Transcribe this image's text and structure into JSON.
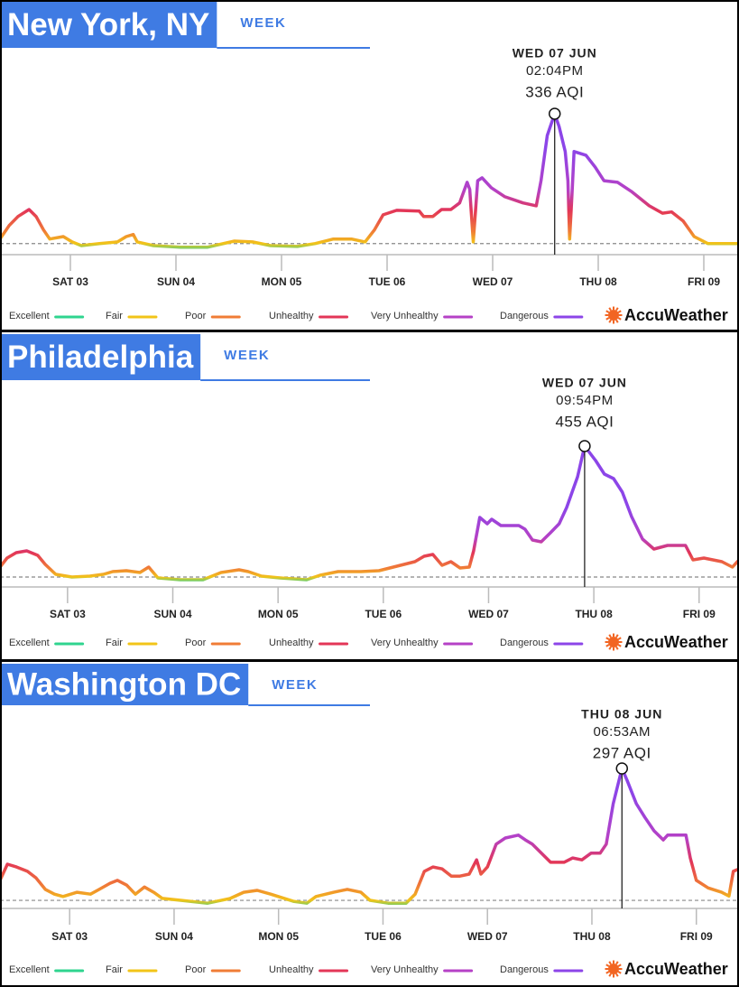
{
  "brand": "AccuWeather",
  "legend": [
    {
      "name": "Excellent",
      "color": "#2fd48f",
      "min": 0
    },
    {
      "name": "Fair",
      "color": "#f2c418",
      "min": 20
    },
    {
      "name": "Poor",
      "color": "#f07c36",
      "min": 50
    },
    {
      "name": "Unhealthy",
      "color": "#e33657",
      "min": 100
    },
    {
      "name": "Very Unhealthy",
      "color": "#b541c6",
      "min": 150
    },
    {
      "name": "Dangerous",
      "color": "#8c45e8",
      "min": 250
    }
  ],
  "chart_data": [
    {
      "type": "line",
      "title": "New York, NY",
      "tab": "WEEK",
      "annotation": {
        "date": "WED 07 JUN",
        "time": "02:04PM",
        "x": 110.1,
        "value": 336,
        "label": "336 AQI"
      },
      "reference_line": 20,
      "xlim": [
        -16,
        152
      ],
      "ylim": [
        -7,
        525
      ],
      "xticks": [
        {
          "value": 0,
          "label": "SAT 03"
        },
        {
          "value": 24,
          "label": "SUN 04"
        },
        {
          "value": 48,
          "label": "MON 05"
        },
        {
          "value": 72,
          "label": "TUE 06"
        },
        {
          "value": 96,
          "label": "WED 07"
        },
        {
          "value": 120,
          "label": "THU 08"
        },
        {
          "value": 144,
          "label": "FRI 09"
        }
      ],
      "x": [
        -16,
        -13.9,
        -11.9,
        -9.4,
        -7.8,
        -6.1,
        -4.7,
        -1.6,
        0.4,
        2.5,
        6.6,
        10.7,
        12.7,
        14.3,
        15.2,
        18.9,
        25,
        31.1,
        37.3,
        41.4,
        45.5,
        51.6,
        55.7,
        59.8,
        63.9,
        67,
        69.1,
        71.1,
        74.2,
        79.3,
        80.3,
        82.4,
        84.4,
        86.5,
        88.5,
        90.2,
        90.8,
        91.6,
        92.6,
        93.6,
        95.7,
        98.8,
        102.9,
        105.9,
        107,
        108.4,
        110.1,
        111.1,
        112.5,
        113.1,
        113.5,
        114.1,
        114.5,
        117.2,
        119.3,
        121.3,
        124.4,
        127.5,
        131.6,
        134.6,
        136.7,
        139.3,
        141.8,
        144.9,
        148,
        151.8
      ],
      "values": [
        31,
        64,
        86,
        103,
        86,
        53,
        31,
        37,
        24,
        15,
        20,
        24,
        37,
        42,
        24,
        15,
        11,
        11,
        26,
        24,
        15,
        13,
        20,
        31,
        31,
        24,
        53,
        90,
        101,
        99,
        86,
        86,
        103,
        103,
        119,
        169,
        152,
        24,
        173,
        180,
        156,
        134,
        119,
        112,
        173,
        283,
        336,
        305,
        244,
        173,
        31,
        152,
        244,
        235,
        206,
        173,
        169,
        147,
        112,
        94,
        97,
        75,
        37,
        20,
        20,
        20
      ]
    },
    {
      "type": "line",
      "title": "Philadelphia",
      "tab": "WEEK",
      "annotation": {
        "date": "WED 07 JUN",
        "time": "09:54PM",
        "x": 117.9,
        "value": 455,
        "label": "455 AQI"
      },
      "reference_line": 20,
      "xlim": [
        -15.4,
        153.1
      ],
      "ylim": [
        -13,
        716
      ],
      "xticks": [
        {
          "value": 0,
          "label": "SAT 03"
        },
        {
          "value": 24,
          "label": "SUN 04"
        },
        {
          "value": 48,
          "label": "MON 05"
        },
        {
          "value": 72,
          "label": "TUE 06"
        },
        {
          "value": 96,
          "label": "WED 07"
        },
        {
          "value": 120,
          "label": "THU 08"
        },
        {
          "value": 144,
          "label": "FRI 09"
        }
      ],
      "x": [
        -15.4,
        -13.8,
        -11.7,
        -9.3,
        -6.8,
        -5.1,
        -2.7,
        1,
        5.1,
        8.2,
        10.3,
        13.4,
        16.5,
        18.5,
        20.6,
        25.7,
        30.9,
        35,
        39.1,
        41.2,
        44.2,
        48.4,
        54.5,
        57.6,
        61.7,
        66.9,
        71,
        75.1,
        79.2,
        81.3,
        83.3,
        85.4,
        87.4,
        89.5,
        91.6,
        92.6,
        94,
        95.7,
        96.7,
        98.8,
        102.9,
        104.3,
        106,
        108,
        110.1,
        112.1,
        113.8,
        116.3,
        117.9,
        120.4,
        122.4,
        124.5,
        126.5,
        128.6,
        131.1,
        133.7,
        136.8,
        140.9,
        142.6,
        145.1,
        149.2,
        151.6,
        153.1
      ],
      "values": [
        53,
        83,
        101,
        107,
        92,
        62,
        29,
        20,
        23,
        29,
        38,
        41,
        35,
        53,
        17,
        11,
        11,
        35,
        44,
        38,
        23,
        17,
        11,
        26,
        38,
        38,
        41,
        56,
        71,
        89,
        95,
        59,
        71,
        50,
        53,
        107,
        218,
        197,
        212,
        191,
        191,
        179,
        143,
        137,
        167,
        197,
        251,
        353,
        455,
        407,
        362,
        347,
        302,
        221,
        146,
        113,
        125,
        125,
        77,
        83,
        71,
        53,
        77
      ]
    },
    {
      "type": "line",
      "title": "Washington DC",
      "tab": "WEEK",
      "annotation": {
        "date": "THU 08 JUN",
        "time": "06:53AM",
        "x": 126.9,
        "value": 297,
        "label": "297 AQI"
      },
      "reference_line": 20,
      "xlim": [
        -16,
        153.8
      ],
      "ylim": [
        3,
        500
      ],
      "xticks": [
        {
          "value": 0,
          "label": "SAT 03"
        },
        {
          "value": 24,
          "label": "SUN 04"
        },
        {
          "value": 48,
          "label": "MON 05"
        },
        {
          "value": 72,
          "label": "TUE 06"
        },
        {
          "value": 96,
          "label": "WED 07"
        },
        {
          "value": 120,
          "label": "THU 08"
        },
        {
          "value": 144,
          "label": "FRI 09"
        }
      ],
      "x": [
        -16,
        -14.3,
        -12.2,
        -9.7,
        -7.7,
        -5.6,
        -3.5,
        -1.5,
        1.7,
        4.8,
        6.8,
        9.3,
        11,
        13.1,
        15.1,
        17.2,
        19.3,
        21.3,
        25.5,
        31.7,
        36.9,
        40,
        43.1,
        46.2,
        51.4,
        54.5,
        56.6,
        60.7,
        63.8,
        66.9,
        69,
        73.2,
        77.3,
        79.4,
        81.5,
        83.5,
        85.6,
        87.7,
        89.7,
        91.8,
        93.5,
        94.5,
        96,
        98,
        100.1,
        103.1,
        104.7,
        106.3,
        108.4,
        110.5,
        113.6,
        115.6,
        117.7,
        119.8,
        121.9,
        123.3,
        124.9,
        126.9,
        128.1,
        130.2,
        132.2,
        134.3,
        136.4,
        137.4,
        141.6,
        142.6,
        144,
        146.7,
        149.8,
        151.5,
        152.5,
        153.8
      ],
      "values": [
        62,
        96,
        90,
        81,
        67,
        43,
        33,
        28,
        37,
        33,
        43,
        56,
        62,
        52,
        33,
        48,
        37,
        24,
        20,
        14,
        24,
        37,
        41,
        33,
        18,
        14,
        28,
        37,
        43,
        37,
        20,
        14,
        14,
        33,
        81,
        90,
        86,
        71,
        71,
        75,
        105,
        75,
        90,
        138,
        151,
        157,
        147,
        138,
        119,
        100,
        100,
        109,
        105,
        119,
        119,
        138,
        223,
        297,
        272,
        223,
        194,
        166,
        147,
        157,
        157,
        109,
        62,
        46,
        37,
        29,
        81,
        86
      ]
    }
  ]
}
